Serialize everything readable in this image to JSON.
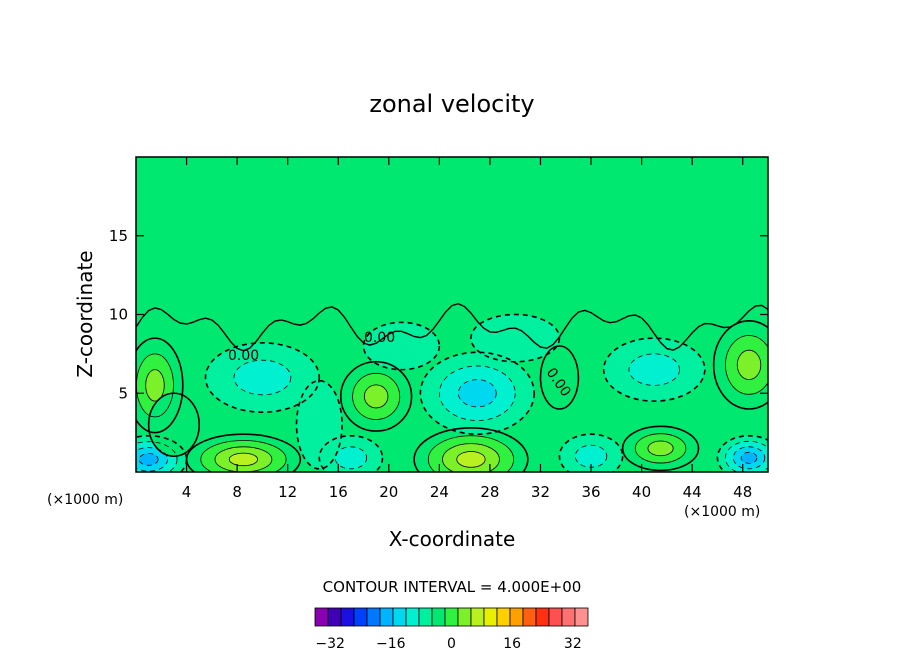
{
  "chart_data": {
    "type": "heatmap",
    "title": "zonal velocity",
    "xlabel": "X-coordinate",
    "ylabel": "Z-coordinate",
    "x_unit": "(×1000 m)",
    "x_unit_right": "(×1000 m)",
    "xlim": [
      0,
      50
    ],
    "ylim": [
      0,
      20
    ],
    "xticks": [
      4,
      8,
      12,
      16,
      20,
      24,
      28,
      32,
      36,
      40,
      44,
      48
    ],
    "yticks": [
      5,
      10,
      15
    ],
    "contour_interval_text": "CONTOUR INTERVAL = 4.000E+00",
    "contour_labels": [
      "0.00",
      "0.00",
      "0.00"
    ],
    "colorbar": {
      "min": -36,
      "max": 36,
      "step": 4,
      "tick_labels": [
        "-32",
        "-16",
        "0",
        "16",
        "32"
      ],
      "tick_values": [
        -32,
        -16,
        0,
        16,
        32
      ],
      "colors": [
        "#8a00b0",
        "#3f00b8",
        "#1a10e0",
        "#0040ff",
        "#0078ff",
        "#00b4ff",
        "#00d8f0",
        "#00f0d0",
        "#00f0a0",
        "#00e870",
        "#30f040",
        "#7cf028",
        "#b8f020",
        "#e8f000",
        "#ffd000",
        "#ffa000",
        "#ff6010",
        "#ff3010",
        "#ff5050",
        "#ff7070",
        "#ff9090"
      ]
    },
    "features": [
      {
        "cx": 1.5,
        "cz": 5.5,
        "rx": 2.2,
        "rz": 3.0,
        "value": 10
      },
      {
        "cx": 1.0,
        "cz": 0.8,
        "rx": 3.0,
        "rz": 1.5,
        "value": -14
      },
      {
        "cx": 8.5,
        "cz": 0.8,
        "rx": 4.5,
        "rz": 1.6,
        "value": 14
      },
      {
        "cx": 10.0,
        "cz": 6.0,
        "rx": 4.5,
        "rz": 2.2,
        "value": -8
      },
      {
        "cx": 3.0,
        "cz": 3.0,
        "rx": 2.0,
        "rz": 2.0,
        "value": 4
      },
      {
        "cx": 17.0,
        "cz": 0.9,
        "rx": 2.5,
        "rz": 1.4,
        "value": -8
      },
      {
        "cx": 19.0,
        "cz": 4.8,
        "rx": 2.8,
        "rz": 2.2,
        "value": 10
      },
      {
        "cx": 26.5,
        "cz": 0.8,
        "rx": 4.5,
        "rz": 2.0,
        "value": 16
      },
      {
        "cx": 27.0,
        "cz": 5.0,
        "rx": 4.5,
        "rz": 2.6,
        "value": -9
      },
      {
        "cx": 36.0,
        "cz": 1.0,
        "rx": 2.5,
        "rz": 1.4,
        "value": -6
      },
      {
        "cx": 41.5,
        "cz": 1.5,
        "rx": 3.0,
        "rz": 1.4,
        "value": 11
      },
      {
        "cx": 41.0,
        "cz": 6.5,
        "rx": 4.0,
        "rz": 2.0,
        "value": -8
      },
      {
        "cx": 48.5,
        "cz": 6.8,
        "rx": 2.8,
        "rz": 2.8,
        "value": 12
      },
      {
        "cx": 48.5,
        "cz": 0.9,
        "rx": 2.5,
        "rz": 1.4,
        "value": -14
      },
      {
        "cx": 14.5,
        "cz": 3.0,
        "rx": 1.8,
        "rz": 2.8,
        "value": -3
      },
      {
        "cx": 33.5,
        "cz": 6.0,
        "rx": 1.5,
        "rz": 2.0,
        "value": 3
      },
      {
        "cx": 21.0,
        "cz": 8.0,
        "rx": 3.0,
        "rz": 1.5,
        "value": -3
      },
      {
        "cx": 30.0,
        "cz": 8.5,
        "rx": 3.5,
        "rz": 1.5,
        "value": -3
      }
    ]
  }
}
